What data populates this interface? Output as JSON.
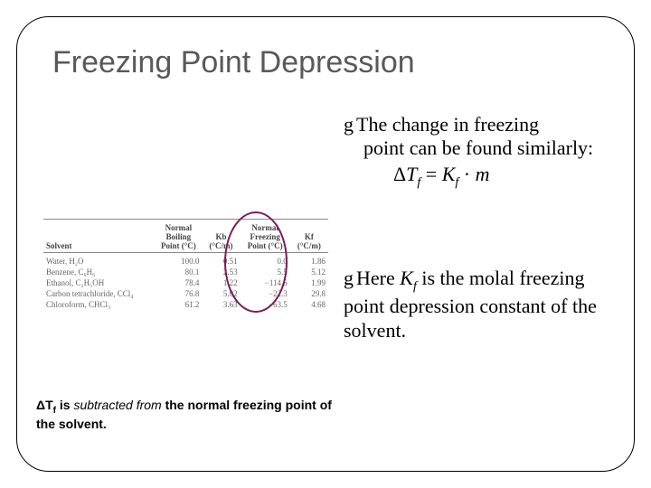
{
  "title": "Freezing Point Depression",
  "bullet1": {
    "lead": "g",
    "text_head": "The change in freezing",
    "text_rest": "point can be found similarly:"
  },
  "formula": {
    "delta": "Δ",
    "T": "T",
    "fsub": "f",
    "eq": " = ",
    "K": "K",
    "dot": " · ",
    "m": "m"
  },
  "bullet2": {
    "lead": "g",
    "text_head": "Here ",
    "K": "K",
    "fsub": "f",
    "text_rest": " is the molal freezing point depression constant of the solvent."
  },
  "footnote": {
    "delta": "Δ",
    "T": "T",
    "fsub": "f",
    "mid": " is ",
    "ital": "subtracted from",
    "rest": " the normal freezing point of the solvent."
  },
  "table": {
    "headers": [
      "Solvent",
      "Normal Boiling Point (°C)",
      "Kb (°C/m)",
      "Normal Freezing Point (°C)",
      "Kf (°C/m)"
    ],
    "rows": [
      [
        "Water, H₂O",
        "100.0",
        "0.51",
        "0.0",
        "1.86"
      ],
      [
        "Benzene, C₆H₆",
        "80.1",
        "2.53",
        "5.5",
        "5.12"
      ],
      [
        "Ethanol, C₂H₅OH",
        "78.4",
        "1.22",
        "−114.6",
        "1.99"
      ],
      [
        "Carbon tetrachloride, CCl₄",
        "76.8",
        "5.02",
        "−22.3",
        "29.8"
      ],
      [
        "Chloroform, CHCl₃",
        "61.2",
        "3.63",
        "−63.5",
        "4.68"
      ]
    ],
    "col_widths": [
      "38%",
      "16%",
      "13%",
      "17%",
      "13%"
    ]
  },
  "style": {
    "oval_color": "#7a1a5a",
    "title_color": "#595959"
  }
}
